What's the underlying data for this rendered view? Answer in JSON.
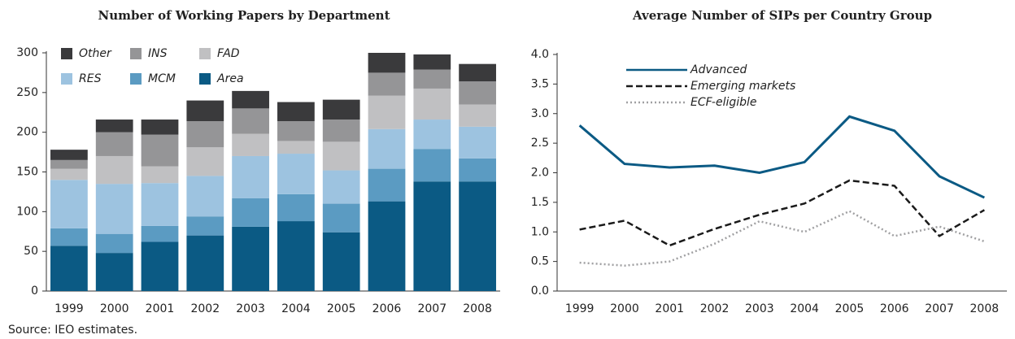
{
  "chart_data": [
    {
      "type": "bar",
      "stacked": true,
      "title": "Number of Working Papers by Department",
      "categories": [
        "1999",
        "2000",
        "2001",
        "2002",
        "2003",
        "2004",
        "2005",
        "2006",
        "2007",
        "2008"
      ],
      "series": [
        {
          "name": "Area",
          "color": "#0b5a84",
          "values": [
            57,
            48,
            62,
            70,
            81,
            88,
            74,
            113,
            138,
            138
          ]
        },
        {
          "name": "MCM",
          "color": "#5b9bc2",
          "values": [
            22,
            24,
            20,
            24,
            36,
            34,
            36,
            41,
            41,
            29
          ]
        },
        {
          "name": "RES",
          "color": "#9dc3e0",
          "values": [
            61,
            63,
            54,
            51,
            53,
            51,
            42,
            50,
            37,
            40
          ]
        },
        {
          "name": "FAD",
          "color": "#c0c0c2",
          "values": [
            14,
            35,
            21,
            36,
            28,
            16,
            36,
            42,
            39,
            28
          ]
        },
        {
          "name": "INS",
          "color": "#959597",
          "values": [
            11,
            30,
            40,
            33,
            32,
            25,
            28,
            29,
            24,
            29
          ]
        },
        {
          "name": "Other",
          "color": "#3a3a3c",
          "values": [
            13,
            16,
            19,
            26,
            22,
            24,
            25,
            25,
            19,
            22
          ]
        }
      ],
      "ylim": [
        0,
        300
      ],
      "yticks": [
        0,
        50,
        100,
        150,
        200,
        250,
        300
      ],
      "grid": false,
      "source": "Source: IEO estimates."
    },
    {
      "type": "line",
      "title": "Average Number of SIPs per Country Group",
      "categories": [
        "1999",
        "2000",
        "2001",
        "2002",
        "2003",
        "2004",
        "2005",
        "2006",
        "2007",
        "2008"
      ],
      "series": [
        {
          "name": "Advanced",
          "color": "#0b5a84",
          "dash": "solid",
          "values": [
            2.8,
            2.15,
            2.09,
            2.12,
            2.0,
            2.18,
            2.95,
            2.71,
            1.94,
            1.58
          ]
        },
        {
          "name": "Emerging markets",
          "color": "#1a1a1a",
          "dash": "dashed",
          "values": [
            1.04,
            1.19,
            0.77,
            1.05,
            1.29,
            1.48,
            1.87,
            1.78,
            0.93,
            1.37
          ]
        },
        {
          "name": "ECF-eligible",
          "color": "#a0a0a2",
          "dash": "dotted",
          "values": [
            0.48,
            0.43,
            0.5,
            0.8,
            1.18,
            1.0,
            1.35,
            0.93,
            1.09,
            0.84
          ]
        }
      ],
      "ylim": [
        0,
        4
      ],
      "yticks": [
        {
          "value": 0,
          "label": "0.0"
        },
        {
          "value": 0.5,
          "label": "0.5"
        },
        {
          "value": 1,
          "label": "1.0"
        },
        {
          "value": 1.5,
          "label": "1.5"
        },
        {
          "value": 2,
          "label": "2.0"
        },
        {
          "value": 2.5,
          "label": "2.5"
        },
        {
          "value": 3,
          "label": "3.0"
        },
        {
          "value": 3.5,
          "label": "3.5"
        },
        {
          "value": 4,
          "label": "4.0"
        }
      ],
      "grid": false
    }
  ]
}
